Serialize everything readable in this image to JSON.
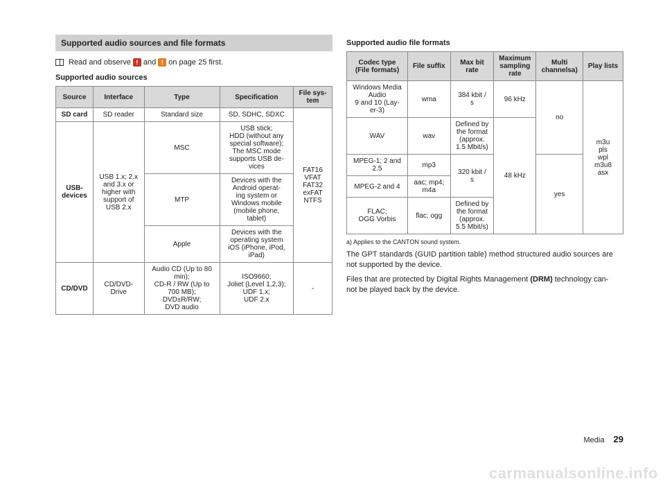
{
  "colors": {
    "red_icon": "#c0392b",
    "orange_icon": "#e67e22",
    "header_bg": "#d0d0d0"
  },
  "left": {
    "title": "Supported audio sources and file formats",
    "read_prefix": "Read and observe",
    "read_middle": "and",
    "read_suffix": "on page 25 first.",
    "sub": "Supported audio sources",
    "headers": [
      "Source",
      "Interface",
      "Type",
      "Specification",
      "File sys-\ntem"
    ],
    "rows": {
      "sd_source": "SD card",
      "sd_interface": "SD reader",
      "sd_type": "Standard size",
      "sd_spec": "SD, SDHC, SDXC",
      "usb_source": "USB-\ndevices",
      "usb_interface": "USB 1.x; 2.x\nand 3.x or\nhigher with\nsupport of\nUSB 2.x",
      "msc_type": "MSC",
      "msc_spec": "USB stick;\nHDD (without any\nspecial software);\nThe MSC mode\nsupports USB de-\nvices",
      "mtp_type": "MTP",
      "mtp_spec": "Devices with the\nAndroid operat-\ning system or\nWindows mobile\n(mobile phone,\ntablet)",
      "apple_type": "Apple",
      "apple_spec": "Devices with the\noperating system\niOS (iPhone, iPod,\niPad)",
      "filesys": "FAT16\nVFAT\nFAT32\nexFAT\nNTFS",
      "cd_source": "CD/DVD",
      "cd_interface": "CD/DVD-\nDrive",
      "cd_type": "Audio CD (Up to 80\nmin);\nCD-R / RW (Up to\n700 MB);\nDVD±R/RW;\nDVD audio",
      "cd_spec": "ISO9660;\nJoliet (Level 1,2,3);\nUDF 1.x;\nUDF 2.x",
      "cd_fs": "-"
    }
  },
  "right": {
    "sub": "Supported audio file formats",
    "headers": [
      "Codec type\n(File formats)",
      "File suffix",
      "Max bit\nrate",
      "Maximum\nsampling\nrate",
      "Multi\nchannelsa)",
      "Play lists"
    ],
    "wma_codec": "Windows Media\nAudio\n9 and 10 (Lay-\ner-3)",
    "wma_suffix": "wma",
    "wma_rate": "384 kbit /\ns",
    "wma_samp": "96 kHz",
    "wav_codec": "WAV",
    "wav_suffix": "wav",
    "wav_rate": "Defined by\nthe format\n(approx.\n1.5 Mbit/s)",
    "mpeg1_codec": "MPEG-1; 2 and\n2.5",
    "mpeg1_suffix": "mp3",
    "mpeg_rate": "320 kbit /\ns",
    "mpeg2_codec": "MPEG-2 and 4",
    "mpeg2_suffix": "aac; mp4;\nm4a",
    "flac_codec": "FLAC;\nOGG Vorbis",
    "flac_suffix": "flac; ogg",
    "flac_rate": "Defined by\nthe format\n(approx.\n5.5 Mbit/s)",
    "samp48": "48 kHz",
    "multi_no": "no",
    "multi_yes": "yes",
    "playlists": "m3u\npls\nwpl\nm3u8\nasx",
    "footnote": "a)  Applies to the CANTON sound system.",
    "p1a": "The GPT standards (GUID partition table) method structured audio sources are not supported by the device.",
    "p2a": "Files that are protected by Digital Rights Management ",
    "p2b": "(DRM)",
    "p2c": " technology can-\nnot be played back by the device."
  },
  "footer": {
    "section": "Media",
    "page": "29"
  },
  "watermark": "carmanualsonline.info"
}
